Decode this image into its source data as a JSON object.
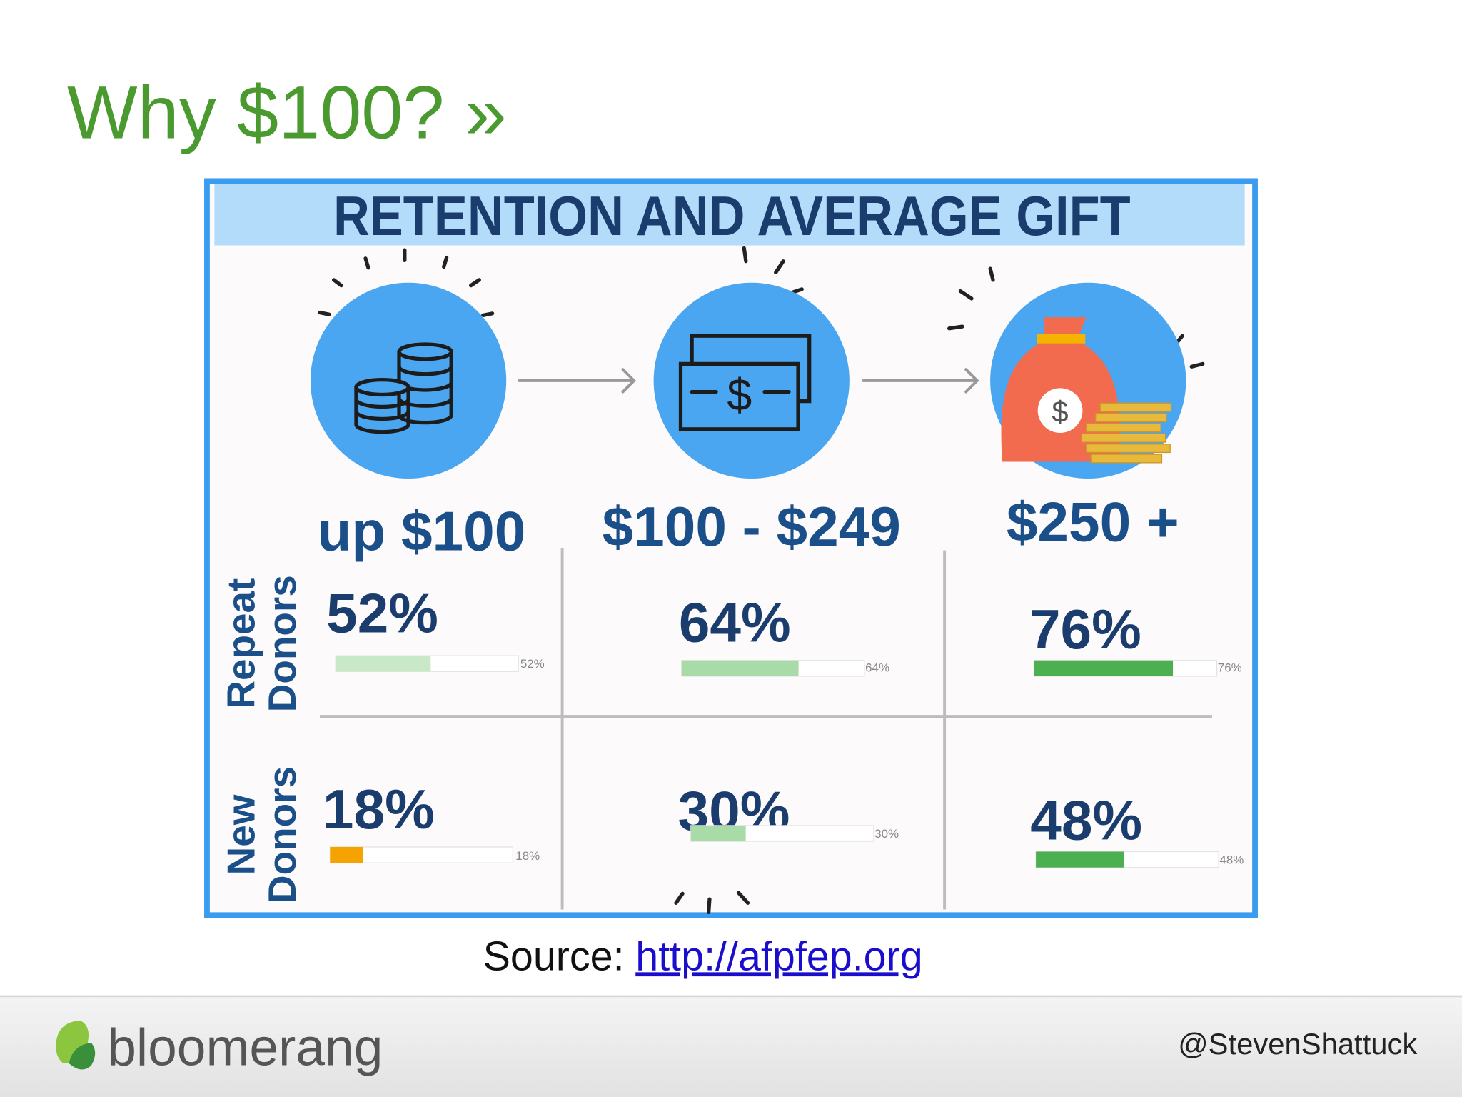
{
  "slide": {
    "title": "Why $100? »",
    "infographic": {
      "title": "RETENTION AND AVERAGE GIFT",
      "columns": [
        "up $100",
        "$100 - $249",
        "$250 +"
      ],
      "rows": [
        {
          "label": [
            "Repeat",
            "Donors"
          ],
          "cells": [
            {
              "value": 52,
              "label": "52%",
              "color": "#c8e8c8"
            },
            {
              "value": 64,
              "label": "64%",
              "color": "#a8dba8"
            },
            {
              "value": 76,
              "label": "76%",
              "color": "#4caf50"
            }
          ]
        },
        {
          "label": [
            "New",
            "Donors"
          ],
          "cells": [
            {
              "value": 18,
              "label": "18%",
              "color": "#f5a300"
            },
            {
              "value": 30,
              "label": "30%",
              "color": "#a8dba8"
            },
            {
              "value": 48,
              "label": "48%",
              "color": "#4caf50"
            }
          ]
        }
      ]
    },
    "source": {
      "prefix": "Source:",
      "link": "http://afpfep.org"
    },
    "footer": {
      "logo": "bloomerang",
      "handle": "@StevenShattuck"
    }
  }
}
